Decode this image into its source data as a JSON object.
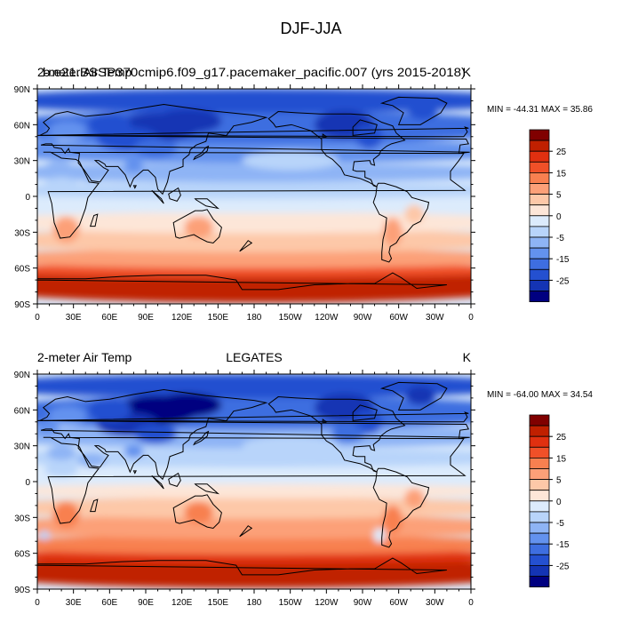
{
  "figure": {
    "title": "DJF-JJA",
    "colorbar": {
      "levels": [
        "25",
        "15",
        "5",
        "0",
        "-5",
        "-15",
        "-25"
      ],
      "colors": [
        "#800000",
        "#c02000",
        "#e03010",
        "#f05028",
        "#f88050",
        "#fca078",
        "#fdc8a8",
        "#fde6d8",
        "#dcebfc",
        "#b8d4fa",
        "#8eb4f5",
        "#6392ee",
        "#3e6ee0",
        "#2450d0",
        "#1434b4",
        "#000080"
      ]
    },
    "coast_color": "#000000"
  },
  "chart_data": [
    {
      "type": "heatmap",
      "left_title": "2-meter Air Temp",
      "center_title": "b.e21.BSSP370cmip6.f09_g17.pacemaker_pacific.007 (yrs 2015-2018)",
      "units": "K",
      "min_max_label": "MIN = -44.31 MAX =  35.86",
      "min": -44.31,
      "max": 35.86,
      "x_ticks": [
        "0",
        "30E",
        "60E",
        "90E",
        "120E",
        "150E",
        "180",
        "150W",
        "120W",
        "90W",
        "60W",
        "30W",
        "0"
      ],
      "y_ticks": [
        "90N",
        "60N",
        "30N",
        "0",
        "30S",
        "60S",
        "90S"
      ],
      "xlim": [
        0,
        360
      ],
      "ylim": [
        -90,
        90
      ]
    },
    {
      "type": "heatmap",
      "left_title": "2-meter Air Temp",
      "center_title": "LEGATES",
      "units": "K",
      "min_max_label": "MIN = -64.00 MAX =  34.54",
      "min": -64.0,
      "max": 34.54,
      "x_ticks": [
        "0",
        "30E",
        "60E",
        "90E",
        "120E",
        "150E",
        "180",
        "150W",
        "120W",
        "90W",
        "60W",
        "30W",
        "0"
      ],
      "y_ticks": [
        "90N",
        "60N",
        "30N",
        "0",
        "30S",
        "60S",
        "90S"
      ],
      "xlim": [
        0,
        360
      ],
      "ylim": [
        -90,
        90
      ]
    }
  ]
}
